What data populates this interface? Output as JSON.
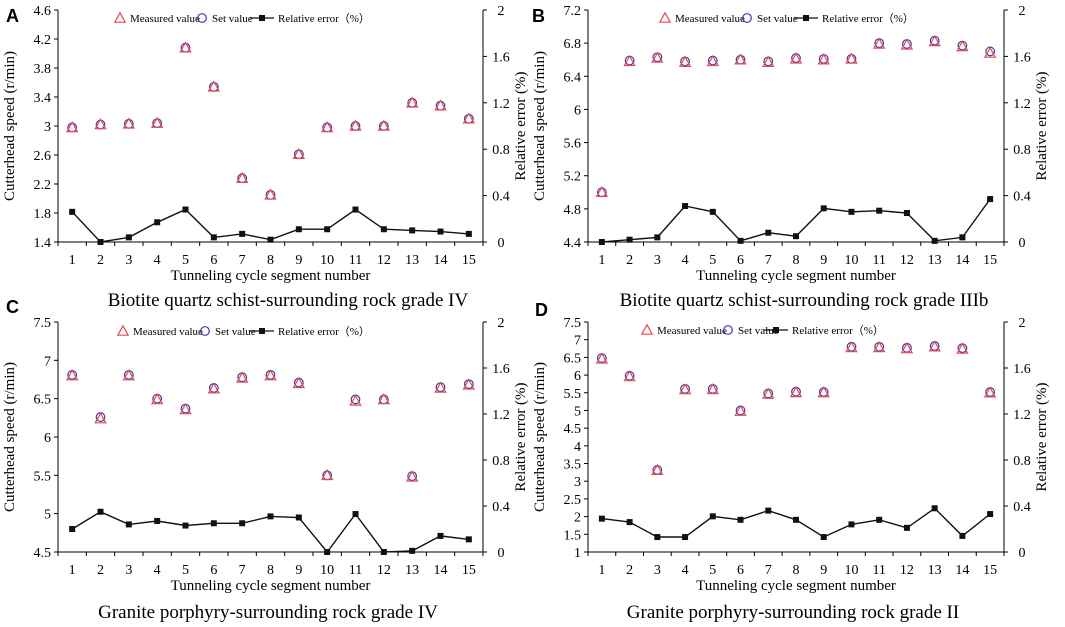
{
  "colors": {
    "measured": "#e8484d",
    "set": "#3a3ab0",
    "error": "#111111",
    "axis": "#000000"
  },
  "chart_data": [
    {
      "panel_label": "A",
      "type": "scatter+line",
      "caption": "Biotite quartz schist-surrounding rock grade IV",
      "xlabel": "Tunneling cycle segment number",
      "ylabel_left": "Cutterhead speed (r/min)",
      "ylabel_right": "Relative error (%)",
      "x": [
        1,
        2,
        3,
        4,
        5,
        6,
        7,
        8,
        9,
        10,
        11,
        12,
        13,
        14,
        15
      ],
      "ylim_left": [
        1.4,
        4.6
      ],
      "yticks_left": [
        "1.4",
        "1.8",
        "2.2",
        "2.6",
        "3",
        "3.4",
        "3.8",
        "4.2",
        "4.6"
      ],
      "ylim_right": [
        0,
        2
      ],
      "yticks_right": [
        "0",
        "0.4",
        "0.8",
        "1.2",
        "1.6",
        "2"
      ],
      "legend": [
        "Measured value",
        "Set value",
        "Relative error（%）"
      ],
      "series": [
        {
          "name": "Measured value",
          "marker": "triangle",
          "values": [
            2.98,
            3.02,
            3.03,
            3.04,
            4.08,
            3.54,
            2.28,
            2.05,
            2.61,
            2.98,
            3.0,
            3.0,
            3.32,
            3.28,
            3.1
          ]
        },
        {
          "name": "Set value",
          "marker": "circle",
          "values": [
            2.98,
            3.02,
            3.03,
            3.04,
            4.08,
            3.54,
            2.28,
            2.05,
            2.61,
            2.98,
            3.0,
            3.0,
            3.32,
            3.28,
            3.1
          ]
        },
        {
          "name": "Relative error（%）",
          "marker": "square-line",
          "values": [
            0.26,
            0.0,
            0.04,
            0.17,
            0.28,
            0.04,
            0.07,
            0.02,
            0.11,
            0.11,
            0.28,
            0.11,
            0.1,
            0.09,
            0.07
          ]
        }
      ]
    },
    {
      "panel_label": "B",
      "type": "scatter+line",
      "caption": "Biotite quartz schist-surrounding rock grade IIIb",
      "xlabel": "Tunneling cycle segment number",
      "ylabel_left": "Cutterhead speed (r/min)",
      "ylabel_right": "Relative error (%)",
      "x": [
        1,
        2,
        3,
        4,
        5,
        6,
        7,
        8,
        9,
        10,
        11,
        12,
        13,
        14,
        15
      ],
      "ylim_left": [
        4.4,
        7.2
      ],
      "yticks_left": [
        "4.4",
        "4.8",
        "5.2",
        "5.6",
        "6",
        "6.4",
        "6.8",
        "7.2"
      ],
      "ylim_right": [
        0,
        2
      ],
      "yticks_right": [
        "0",
        "0.4",
        "0.8",
        "1.2",
        "1.6",
        "2"
      ],
      "legend": [
        "Measured value",
        "Set value",
        "Relative error（%）"
      ],
      "series": [
        {
          "name": "Measured value",
          "marker": "triangle",
          "values": [
            5.0,
            6.58,
            6.62,
            6.57,
            6.58,
            6.6,
            6.57,
            6.61,
            6.6,
            6.61,
            6.79,
            6.78,
            6.82,
            6.76,
            6.68
          ]
        },
        {
          "name": "Set value",
          "marker": "circle",
          "values": [
            5.0,
            6.59,
            6.63,
            6.58,
            6.59,
            6.6,
            6.58,
            6.62,
            6.61,
            6.61,
            6.8,
            6.79,
            6.83,
            6.77,
            6.7
          ]
        },
        {
          "name": "Relative error（%）",
          "marker": "square-line",
          "values": [
            0.0,
            0.02,
            0.04,
            0.31,
            0.26,
            0.01,
            0.08,
            0.05,
            0.29,
            0.26,
            0.27,
            0.25,
            0.01,
            0.04,
            0.37
          ]
        }
      ]
    },
    {
      "panel_label": "C",
      "type": "scatter+line",
      "caption": "Granite porphyry-surrounding rock grade IV",
      "xlabel": "Tunneling cycle segment number",
      "ylabel_left": "Cutterhead speed (r/min)",
      "ylabel_right": "Relative error (%)",
      "x": [
        1,
        2,
        3,
        4,
        5,
        6,
        7,
        8,
        9,
        10,
        11,
        12,
        13,
        14,
        15
      ],
      "ylim_left": [
        4.5,
        7.5
      ],
      "yticks_left": [
        "4.5",
        "5",
        "5.5",
        "6",
        "6.5",
        "7",
        "7.5"
      ],
      "ylim_right": [
        0,
        2
      ],
      "yticks_right": [
        "0",
        "0.4",
        "0.8",
        "1.2",
        "1.6",
        "2"
      ],
      "legend": [
        "Measured value",
        "Set value",
        "Relative error（%）"
      ],
      "series": [
        {
          "name": "Measured value",
          "marker": "triangle",
          "values": [
            6.8,
            6.24,
            6.8,
            6.49,
            6.36,
            6.63,
            6.77,
            6.8,
            6.7,
            5.5,
            6.47,
            6.49,
            5.48,
            6.64,
            6.68
          ]
        },
        {
          "name": "Set value",
          "marker": "circle",
          "values": [
            6.81,
            6.26,
            6.81,
            6.5,
            6.37,
            6.64,
            6.78,
            6.81,
            6.71,
            5.5,
            6.49,
            6.49,
            5.49,
            6.65,
            6.69
          ]
        },
        {
          "name": "Relative error（%）",
          "marker": "square-line",
          "values": [
            0.2,
            0.35,
            0.24,
            0.27,
            0.23,
            0.25,
            0.25,
            0.31,
            0.3,
            0.0,
            0.33,
            0.0,
            0.01,
            0.14,
            0.11
          ]
        }
      ]
    },
    {
      "panel_label": "D",
      "type": "scatter+line",
      "caption": "Granite porphyry-surrounding rock grade II",
      "xlabel": "Tunneling cycle segment number",
      "ylabel_left": "Cutterhead speed (r/min)",
      "ylabel_right": "Relative error (%)",
      "x": [
        1,
        2,
        3,
        4,
        5,
        6,
        7,
        8,
        9,
        10,
        11,
        12,
        13,
        14,
        15
      ],
      "ylim_left": [
        1,
        7.5
      ],
      "yticks_left": [
        "1",
        "1.5",
        "2",
        "2.5",
        "3",
        "3.5",
        "4",
        "4.5",
        "5",
        "5.5",
        "6",
        "6.5",
        "7",
        "7.5"
      ],
      "ylim_right": [
        0,
        2
      ],
      "yticks_right": [
        "0",
        "0.4",
        "0.8",
        "1.2",
        "1.6",
        "2"
      ],
      "legend": [
        "Measured value",
        "Set value",
        "Relative error（%）"
      ],
      "series": [
        {
          "name": "Measured value",
          "marker": "triangle",
          "values": [
            6.46,
            5.96,
            3.31,
            5.59,
            5.59,
            4.98,
            5.46,
            5.51,
            5.51,
            6.78,
            6.78,
            6.75,
            6.8,
            6.74,
            5.5
          ]
        },
        {
          "name": "Set value",
          "marker": "circle",
          "values": [
            6.48,
            5.98,
            3.32,
            5.61,
            5.61,
            5.0,
            5.48,
            5.53,
            5.52,
            6.8,
            6.8,
            6.77,
            6.82,
            6.76,
            5.52
          ]
        },
        {
          "name": "Relative error（%）",
          "marker": "square-line",
          "values": [
            0.29,
            0.26,
            0.13,
            0.13,
            0.31,
            0.28,
            0.36,
            0.28,
            0.13,
            0.24,
            0.28,
            0.21,
            0.38,
            0.14,
            0.33
          ]
        }
      ]
    }
  ]
}
